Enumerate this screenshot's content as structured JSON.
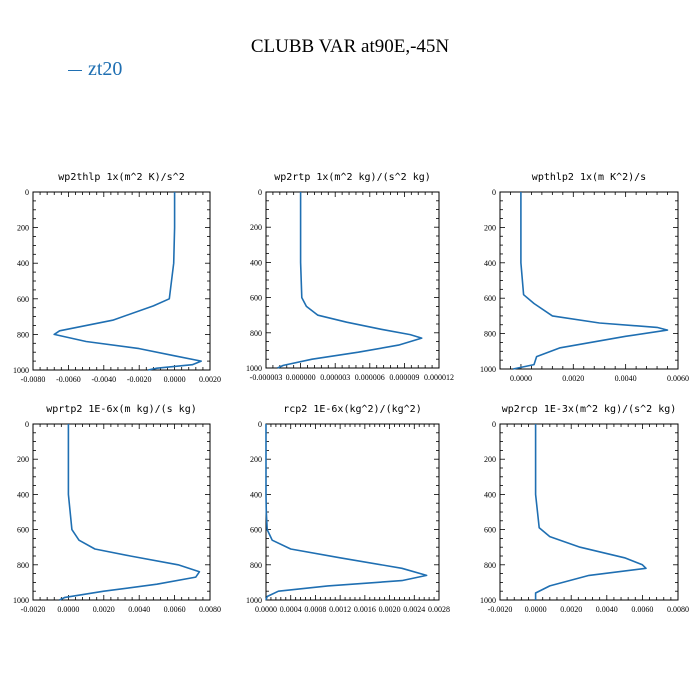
{
  "page": {
    "title": "CLUBB VAR at90E,-45N",
    "legend": [
      {
        "label": "zt20",
        "color": "#1f6fb2"
      }
    ]
  },
  "chart_data": [
    {
      "type": "line",
      "title": "wp2thlp  1x(m^2 K)/s^2",
      "xlim": [
        -0.008,
        0.002
      ],
      "ylim": [
        0,
        1000
      ],
      "x_ticks": [
        "-0.0080",
        "-0.0060",
        "-0.0040",
        "-0.0020",
        "0.0000",
        "0.0020"
      ],
      "x_tick_values": [
        -0.008,
        -0.006,
        -0.004,
        -0.002,
        0.0,
        0.002
      ],
      "y_ticks": [
        "0",
        "200",
        "400",
        "600",
        "800",
        "1000"
      ],
      "series": [
        {
          "color": "#1f6fb2",
          "x": [
            0.0,
            0.0,
            -5e-05,
            -0.0003,
            -0.0012,
            -0.0035,
            -0.0065,
            -0.0068,
            -0.005,
            -0.002,
            0.0,
            0.0015,
            0.001,
            -0.001,
            -0.0015
          ],
          "y": [
            0,
            200,
            400,
            600,
            640,
            720,
            780,
            800,
            840,
            880,
            920,
            950,
            970,
            990,
            1000
          ]
        }
      ]
    },
    {
      "type": "line",
      "title": "wp2rtp  1x(m^2 kg)/(s^2 kg)",
      "xlim": [
        -3e-06,
        1.2e-05
      ],
      "ylim": [
        0,
        1000
      ],
      "x_ticks": [
        "-0.000003",
        "0.000000",
        "0.000003",
        "0.000006",
        "0.000009",
        "0.000012"
      ],
      "x_tick_values": [
        -3e-06,
        0.0,
        3e-06,
        6e-06,
        9e-06,
        1.2e-05
      ],
      "y_ticks": [
        "0",
        "200",
        "400",
        "600",
        "800",
        "1000"
      ],
      "series": [
        {
          "color": "#1f6fb2",
          "x": [
            0.0,
            0.0,
            0.0,
            1e-07,
            5e-07,
            1.5e-06,
            4e-06,
            7e-06,
            9.5e-06,
            1.05e-05,
            8.5e-06,
            5e-06,
            1e-06,
            -1.5e-06,
            -2e-06
          ],
          "y": [
            0,
            200,
            400,
            600,
            650,
            700,
            740,
            780,
            810,
            830,
            870,
            910,
            950,
            985,
            1000
          ]
        }
      ]
    },
    {
      "type": "line",
      "title": "wpthlp2  1x(m K^2)/s",
      "xlim": [
        -0.0008,
        0.006
      ],
      "ylim": [
        0,
        1000
      ],
      "x_ticks": [
        "0.0000",
        "0.0020",
        "0.0040",
        "0.0060"
      ],
      "x_tick_values": [
        0.0,
        0.002,
        0.004,
        0.006
      ],
      "y_ticks": [
        "0",
        "200",
        "400",
        "600",
        "800",
        "1000"
      ],
      "series": [
        {
          "color": "#1f6fb2",
          "x": [
            0.0,
            0.0,
            0.0,
            0.0001,
            0.0005,
            0.0012,
            0.003,
            0.0052,
            0.0056,
            0.004,
            0.0015,
            0.0006,
            0.0005,
            -0.0003
          ],
          "y": [
            0,
            200,
            400,
            580,
            630,
            700,
            740,
            765,
            780,
            815,
            880,
            930,
            975,
            1000
          ]
        }
      ]
    },
    {
      "type": "line",
      "title": "wprtp2  1E-6x(m kg)/(s kg)",
      "xlim": [
        -0.002,
        0.008
      ],
      "ylim": [
        0,
        1000
      ],
      "x_ticks": [
        "-0.0020",
        "0.0000",
        "0.0020",
        "0.0040",
        "0.0060",
        "0.0080"
      ],
      "x_tick_values": [
        -0.002,
        0.0,
        0.002,
        0.004,
        0.006,
        0.008
      ],
      "y_ticks": [
        "0",
        "200",
        "400",
        "600",
        "800",
        "1000"
      ],
      "series": [
        {
          "color": "#1f6fb2",
          "x": [
            0.0,
            0.0,
            0.0,
            0.0002,
            0.0006,
            0.0015,
            0.0035,
            0.0062,
            0.0074,
            0.0072,
            0.005,
            0.002,
            -0.0002,
            -0.0005
          ],
          "y": [
            0,
            200,
            400,
            600,
            660,
            710,
            750,
            800,
            840,
            870,
            910,
            950,
            985,
            1000
          ]
        }
      ]
    },
    {
      "type": "line",
      "title": "rcp2  1E-6x(kg^2)/(kg^2)",
      "xlim": [
        0.0,
        0.0028
      ],
      "ylim": [
        0,
        1000
      ],
      "x_ticks": [
        "0.0000",
        "0.0004",
        "0.0008",
        "0.0012",
        "0.0016",
        "0.0020",
        "0.0024",
        "0.0028"
      ],
      "x_tick_values": [
        0.0,
        0.0004,
        0.0008,
        0.0012,
        0.0016,
        0.002,
        0.0024,
        0.0028
      ],
      "y_ticks": [
        "0",
        "200",
        "400",
        "600",
        "800",
        "1000"
      ],
      "series": [
        {
          "color": "#1f6fb2",
          "x": [
            0.0,
            0.0,
            5e-06,
            2e-05,
            0.0001,
            0.0004,
            0.0012,
            0.0022,
            0.0026,
            0.0022,
            0.001,
            0.0002,
            2e-05,
            0.0
          ],
          "y": [
            0,
            400,
            500,
            600,
            660,
            710,
            760,
            820,
            860,
            890,
            920,
            950,
            980,
            1000
          ]
        }
      ]
    },
    {
      "type": "line",
      "title": "wp2rcp  1E-3x(m^2 kg)/(s^2 kg)",
      "xlim": [
        -0.002,
        0.008
      ],
      "ylim": [
        0,
        1000
      ],
      "x_ticks": [
        "-0.0020",
        "0.0000",
        "0.0020",
        "0.0040",
        "0.0060",
        "0.0080"
      ],
      "x_tick_values": [
        -0.002,
        0.0,
        0.002,
        0.004,
        0.006,
        0.008
      ],
      "y_ticks": [
        "0",
        "200",
        "400",
        "600",
        "800",
        "1000"
      ],
      "series": [
        {
          "color": "#1f6fb2",
          "x": [
            0.0,
            0.0,
            0.0,
            0.0002,
            0.0008,
            0.0025,
            0.005,
            0.006,
            0.0062,
            0.003,
            0.0008,
            0.0,
            0.0
          ],
          "y": [
            0,
            200,
            400,
            590,
            640,
            700,
            760,
            800,
            820,
            860,
            920,
            960,
            1000
          ]
        }
      ]
    }
  ]
}
